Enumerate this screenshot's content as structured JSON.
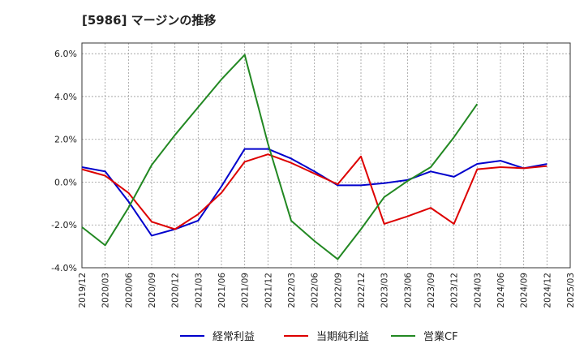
{
  "chart_data": {
    "type": "line",
    "title": "[5986]  マージンの推移",
    "xlabel": "",
    "ylabel": "",
    "x": [
      "2019/12",
      "2020/03",
      "2020/06",
      "2020/09",
      "2020/12",
      "2021/03",
      "2021/06",
      "2021/09",
      "2021/12",
      "2022/03",
      "2022/06",
      "2022/09",
      "2022/12",
      "2023/03",
      "2023/06",
      "2023/09",
      "2023/12",
      "2024/03",
      "2024/06",
      "2024/09",
      "2024/12",
      "2025/03"
    ],
    "ylim": [
      -4.0,
      6.5
    ],
    "yticks": [
      -4.0,
      -2.0,
      0.0,
      2.0,
      4.0,
      6.0
    ],
    "ytick_labels": [
      "-4.0%",
      "-2.0%",
      "0.0%",
      "2.0%",
      "4.0%",
      "6.0%"
    ],
    "grid": true,
    "legend_position": "bottom",
    "series": [
      {
        "name": "経常利益",
        "color": "#0000cc",
        "values": [
          0.7,
          0.5,
          -0.9,
          -2.5,
          -2.2,
          -1.8,
          -0.2,
          1.55,
          1.55,
          1.1,
          0.5,
          -0.15,
          -0.15,
          -0.05,
          0.1,
          0.5,
          0.25,
          0.85,
          1.0,
          0.65,
          0.85,
          null
        ]
      },
      {
        "name": "当期純利益",
        "color": "#dd0000",
        "values": [
          0.6,
          0.3,
          -0.5,
          -1.85,
          -2.2,
          -1.5,
          -0.5,
          0.95,
          1.3,
          0.9,
          0.4,
          -0.1,
          1.2,
          -1.95,
          -1.6,
          -1.2,
          -1.95,
          0.6,
          0.7,
          0.65,
          0.75,
          null
        ]
      },
      {
        "name": "営業CF",
        "color": "#228822",
        "values": [
          -2.1,
          -2.95,
          -1.2,
          0.8,
          2.2,
          3.5,
          4.8,
          5.95,
          1.8,
          -1.8,
          -2.75,
          -3.6,
          -2.2,
          -0.7,
          0.05,
          0.7,
          2.1,
          3.65,
          null,
          null,
          null,
          null
        ]
      }
    ]
  }
}
